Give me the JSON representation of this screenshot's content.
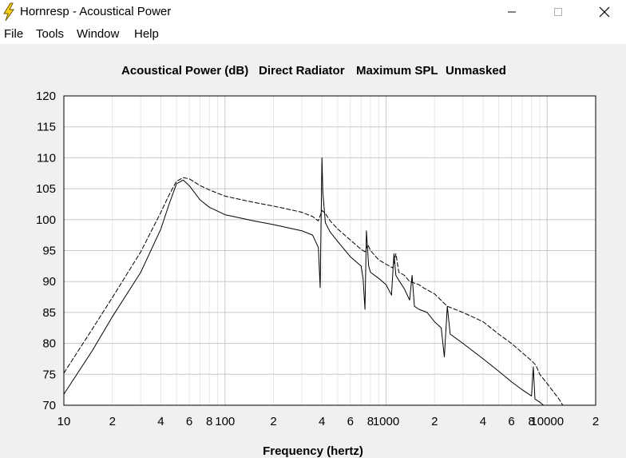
{
  "window": {
    "title": "Hornresp - Acoustical Power",
    "app_icon": "lightning-bolt-icon",
    "controls": [
      "minimize-icon",
      "maximize-icon",
      "close-icon"
    ]
  },
  "menu": [
    {
      "label": "File"
    },
    {
      "label": "Tools"
    },
    {
      "label": "Window"
    },
    {
      "label": "Help"
    }
  ],
  "chart_data": {
    "type": "line",
    "title_parts": [
      "Acoustical Power (dB)",
      "Direct Radiator",
      "Maximum SPL",
      "Unmasked"
    ],
    "xlabel": "Frequency (hertz)",
    "ylabel": "",
    "xscale": "log",
    "xlim": [
      10,
      20000
    ],
    "ylim": [
      70,
      120
    ],
    "grid": true,
    "x_tick_labels": [
      {
        "value": 10,
        "label": "10"
      },
      {
        "value": 20,
        "label": "2"
      },
      {
        "value": 40,
        "label": "4"
      },
      {
        "value": 60,
        "label": "6"
      },
      {
        "value": 80,
        "label": "8"
      },
      {
        "value": 100,
        "label": "100"
      },
      {
        "value": 200,
        "label": "2"
      },
      {
        "value": 400,
        "label": "4"
      },
      {
        "value": 600,
        "label": "6"
      },
      {
        "value": 800,
        "label": "8"
      },
      {
        "value": 1000,
        "label": "1000"
      },
      {
        "value": 2000,
        "label": "2"
      },
      {
        "value": 4000,
        "label": "4"
      },
      {
        "value": 6000,
        "label": "6"
      },
      {
        "value": 8000,
        "label": "8"
      },
      {
        "value": 10000,
        "label": "10000"
      },
      {
        "value": 20000,
        "label": "2"
      }
    ],
    "y_ticks": [
      70,
      75,
      80,
      85,
      90,
      95,
      100,
      105,
      110,
      115,
      120
    ],
    "series": [
      {
        "style": "dashed",
        "points": [
          [
            10,
            75.2
          ],
          [
            15,
            82.3
          ],
          [
            20,
            87.4
          ],
          [
            30,
            94.8
          ],
          [
            40,
            101.2
          ],
          [
            45,
            104.0
          ],
          [
            50,
            106.2
          ],
          [
            55,
            106.8
          ],
          [
            60,
            106.6
          ],
          [
            70,
            105.5
          ],
          [
            80,
            104.8
          ],
          [
            100,
            103.8
          ],
          [
            150,
            102.8
          ],
          [
            200,
            102.2
          ],
          [
            300,
            101.2
          ],
          [
            350,
            100.5
          ],
          [
            380,
            99.8
          ],
          [
            400,
            101.5
          ],
          [
            420,
            101.0
          ],
          [
            450,
            99.8
          ],
          [
            500,
            98.5
          ],
          [
            600,
            96.7
          ],
          [
            700,
            95.2
          ],
          [
            740,
            94.8
          ],
          [
            770,
            96.0
          ],
          [
            800,
            95.0
          ],
          [
            900,
            93.5
          ],
          [
            1000,
            92.8
          ],
          [
            1100,
            92.2
          ],
          [
            1150,
            94.5
          ],
          [
            1200,
            91.5
          ],
          [
            1300,
            91.0
          ],
          [
            1400,
            90.0
          ],
          [
            1600,
            89.5
          ],
          [
            1700,
            89.0
          ],
          [
            2000,
            88.0
          ],
          [
            2400,
            86.0
          ],
          [
            3000,
            85.0
          ],
          [
            4000,
            83.5
          ],
          [
            5000,
            81.5
          ],
          [
            6000,
            80.0
          ],
          [
            7000,
            78.5
          ],
          [
            8000,
            77.2
          ],
          [
            8500,
            76.5
          ],
          [
            9000,
            75.0
          ],
          [
            10000,
            73.5
          ],
          [
            12000,
            70.8
          ],
          [
            12500,
            70
          ]
        ]
      },
      {
        "style": "solid",
        "points": [
          [
            10,
            71.8
          ],
          [
            15,
            78.8
          ],
          [
            20,
            84.3
          ],
          [
            30,
            91.5
          ],
          [
            40,
            98.5
          ],
          [
            45,
            102.5
          ],
          [
            50,
            105.8
          ],
          [
            55,
            106.4
          ],
          [
            60,
            105.5
          ],
          [
            70,
            103.2
          ],
          [
            80,
            102.0
          ],
          [
            100,
            100.8
          ],
          [
            150,
            99.8
          ],
          [
            200,
            99.2
          ],
          [
            300,
            98.2
          ],
          [
            350,
            97.5
          ],
          [
            380,
            95.5
          ],
          [
            390,
            89.0
          ],
          [
            400,
            110.0
          ],
          [
            405,
            104.5
          ],
          [
            420,
            99.5
          ],
          [
            450,
            98.0
          ],
          [
            500,
            96.5
          ],
          [
            600,
            94.0
          ],
          [
            700,
            92.5
          ],
          [
            720,
            90.5
          ],
          [
            740,
            85.5
          ],
          [
            755,
            98.2
          ],
          [
            780,
            92.5
          ],
          [
            800,
            91.5
          ],
          [
            900,
            90.5
          ],
          [
            1000,
            89.5
          ],
          [
            1080,
            87.8
          ],
          [
            1120,
            94.5
          ],
          [
            1150,
            91.0
          ],
          [
            1200,
            90.2
          ],
          [
            1300,
            88.8
          ],
          [
            1400,
            87.0
          ],
          [
            1450,
            91.0
          ],
          [
            1500,
            86.0
          ],
          [
            1600,
            85.5
          ],
          [
            1800,
            85.0
          ],
          [
            2000,
            83.5
          ],
          [
            2200,
            82.5
          ],
          [
            2300,
            77.8
          ],
          [
            2400,
            86.0
          ],
          [
            2500,
            81.5
          ],
          [
            3000,
            80.0
          ],
          [
            4000,
            77.5
          ],
          [
            5000,
            75.5
          ],
          [
            6000,
            73.8
          ],
          [
            7000,
            72.5
          ],
          [
            8000,
            71.5
          ],
          [
            8200,
            76.2
          ],
          [
            8400,
            71.0
          ],
          [
            9000,
            70.5
          ],
          [
            9500,
            70
          ]
        ]
      }
    ]
  }
}
